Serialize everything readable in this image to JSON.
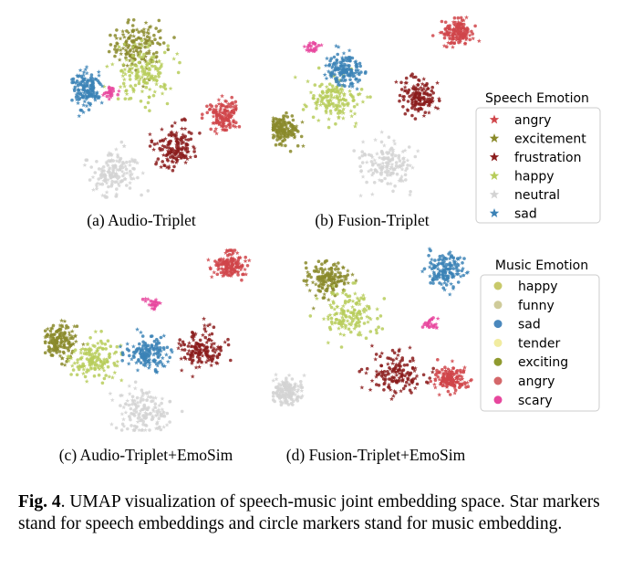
{
  "panels": [
    {
      "id": "a",
      "caption": "(a) Audio-Triplet"
    },
    {
      "id": "b",
      "caption": "(b) Fusion-Triplet"
    },
    {
      "id": "c",
      "caption": "(c) Audio-Triplet+EmoSim"
    },
    {
      "id": "d",
      "caption": "(d) Fusion-Triplet+EmoSim"
    }
  ],
  "legends": {
    "speech": {
      "title": "Speech Emotion",
      "marker": "star",
      "items": [
        {
          "label": "angry",
          "color": "#d0454a"
        },
        {
          "label": "excitement",
          "color": "#8a8a2a"
        },
        {
          "label": "frustration",
          "color": "#8b1c1c"
        },
        {
          "label": "happy",
          "color": "#b7cc5a"
        },
        {
          "label": "neutral",
          "color": "#d3d3d3"
        },
        {
          "label": "sad",
          "color": "#3b82b6"
        }
      ]
    },
    "music": {
      "title": "Music Emotion",
      "marker": "circle",
      "items": [
        {
          "label": "happy",
          "color": "#c8c96a"
        },
        {
          "label": "funny",
          "color": "#cfcb9a"
        },
        {
          "label": "sad",
          "color": "#4a88bd"
        },
        {
          "label": "tender",
          "color": "#f1eca0"
        },
        {
          "label": "exciting",
          "color": "#8f9a2f"
        },
        {
          "label": "angry",
          "color": "#d4676a"
        },
        {
          "label": "scary",
          "color": "#e7479d"
        }
      ]
    }
  },
  "figure_caption": {
    "label": "Fig. 4",
    "text": ". UMAP visualization of speech-music joint embedding space. Star markers stand for speech embeddings and circle markers stand for music embedding."
  },
  "chart_data": [
    {
      "type": "scatter",
      "title": "(a) Audio-Triplet",
      "clusters": [
        {
          "emotion": "excitement",
          "color": "#8a8a2a",
          "x": 0.38,
          "y": 0.18,
          "spread": 0.12
        },
        {
          "emotion": "happy",
          "color": "#b7cc5a",
          "x": 0.42,
          "y": 0.33,
          "spread": 0.12
        },
        {
          "emotion": "sad",
          "color": "#3b82b6",
          "x": 0.1,
          "y": 0.4,
          "spread": 0.07
        },
        {
          "emotion": "scary",
          "color": "#e7479d",
          "x": 0.22,
          "y": 0.42,
          "spread": 0.03
        },
        {
          "emotion": "neutral",
          "color": "#d3d3d3",
          "x": 0.25,
          "y": 0.85,
          "spread": 0.1
        },
        {
          "emotion": "frustration",
          "color": "#8b1c1c",
          "x": 0.58,
          "y": 0.72,
          "spread": 0.1
        },
        {
          "emotion": "angry",
          "color": "#d0454a",
          "x": 0.85,
          "y": 0.55,
          "spread": 0.07
        }
      ]
    },
    {
      "type": "scatter",
      "title": "(b) Fusion-Triplet",
      "clusters": [
        {
          "emotion": "excitement",
          "color": "#8a8a2a",
          "x": 0.07,
          "y": 0.62,
          "spread": 0.06
        },
        {
          "emotion": "happy",
          "color": "#b7cc5a",
          "x": 0.3,
          "y": 0.45,
          "spread": 0.1
        },
        {
          "emotion": "sad",
          "color": "#3b82b6",
          "x": 0.35,
          "y": 0.3,
          "spread": 0.07
        },
        {
          "emotion": "scary",
          "color": "#e7479d",
          "x": 0.2,
          "y": 0.18,
          "spread": 0.03
        },
        {
          "emotion": "neutral",
          "color": "#d3d3d3",
          "x": 0.55,
          "y": 0.8,
          "spread": 0.1
        },
        {
          "emotion": "frustration",
          "color": "#8b1c1c",
          "x": 0.7,
          "y": 0.45,
          "spread": 0.08
        },
        {
          "emotion": "angry",
          "color": "#d0454a",
          "x": 0.88,
          "y": 0.1,
          "spread": 0.06
        }
      ]
    },
    {
      "type": "scatter",
      "title": "(c) Audio-Triplet+EmoSim",
      "clusters": [
        {
          "emotion": "excitement",
          "color": "#8a8a2a",
          "x": 0.08,
          "y": 0.5,
          "spread": 0.07
        },
        {
          "emotion": "happy",
          "color": "#b7cc5a",
          "x": 0.25,
          "y": 0.6,
          "spread": 0.1
        },
        {
          "emotion": "sad",
          "color": "#3b82b6",
          "x": 0.5,
          "y": 0.57,
          "spread": 0.07
        },
        {
          "emotion": "scary",
          "color": "#e7479d",
          "x": 0.52,
          "y": 0.3,
          "spread": 0.03
        },
        {
          "emotion": "neutral",
          "color": "#d3d3d3",
          "x": 0.48,
          "y": 0.88,
          "spread": 0.1
        },
        {
          "emotion": "frustration",
          "color": "#8b1c1c",
          "x": 0.75,
          "y": 0.55,
          "spread": 0.08
        },
        {
          "emotion": "angry",
          "color": "#d0454a",
          "x": 0.88,
          "y": 0.1,
          "spread": 0.06
        }
      ]
    },
    {
      "type": "scatter",
      "title": "(d) Fusion-Triplet+EmoSim",
      "clusters": [
        {
          "emotion": "excitement",
          "color": "#8a8a2a",
          "x": 0.28,
          "y": 0.2,
          "spread": 0.08
        },
        {
          "emotion": "happy",
          "color": "#b7cc5a",
          "x": 0.38,
          "y": 0.4,
          "spread": 0.1
        },
        {
          "emotion": "sad",
          "color": "#3b82b6",
          "x": 0.82,
          "y": 0.15,
          "spread": 0.07
        },
        {
          "emotion": "scary",
          "color": "#e7479d",
          "x": 0.75,
          "y": 0.45,
          "spread": 0.03
        },
        {
          "emotion": "neutral",
          "color": "#d3d3d3",
          "x": 0.08,
          "y": 0.82,
          "spread": 0.06
        },
        {
          "emotion": "frustration",
          "color": "#8b1c1c",
          "x": 0.6,
          "y": 0.72,
          "spread": 0.1
        },
        {
          "emotion": "angry",
          "color": "#d0454a",
          "x": 0.85,
          "y": 0.75,
          "spread": 0.06
        }
      ]
    }
  ]
}
